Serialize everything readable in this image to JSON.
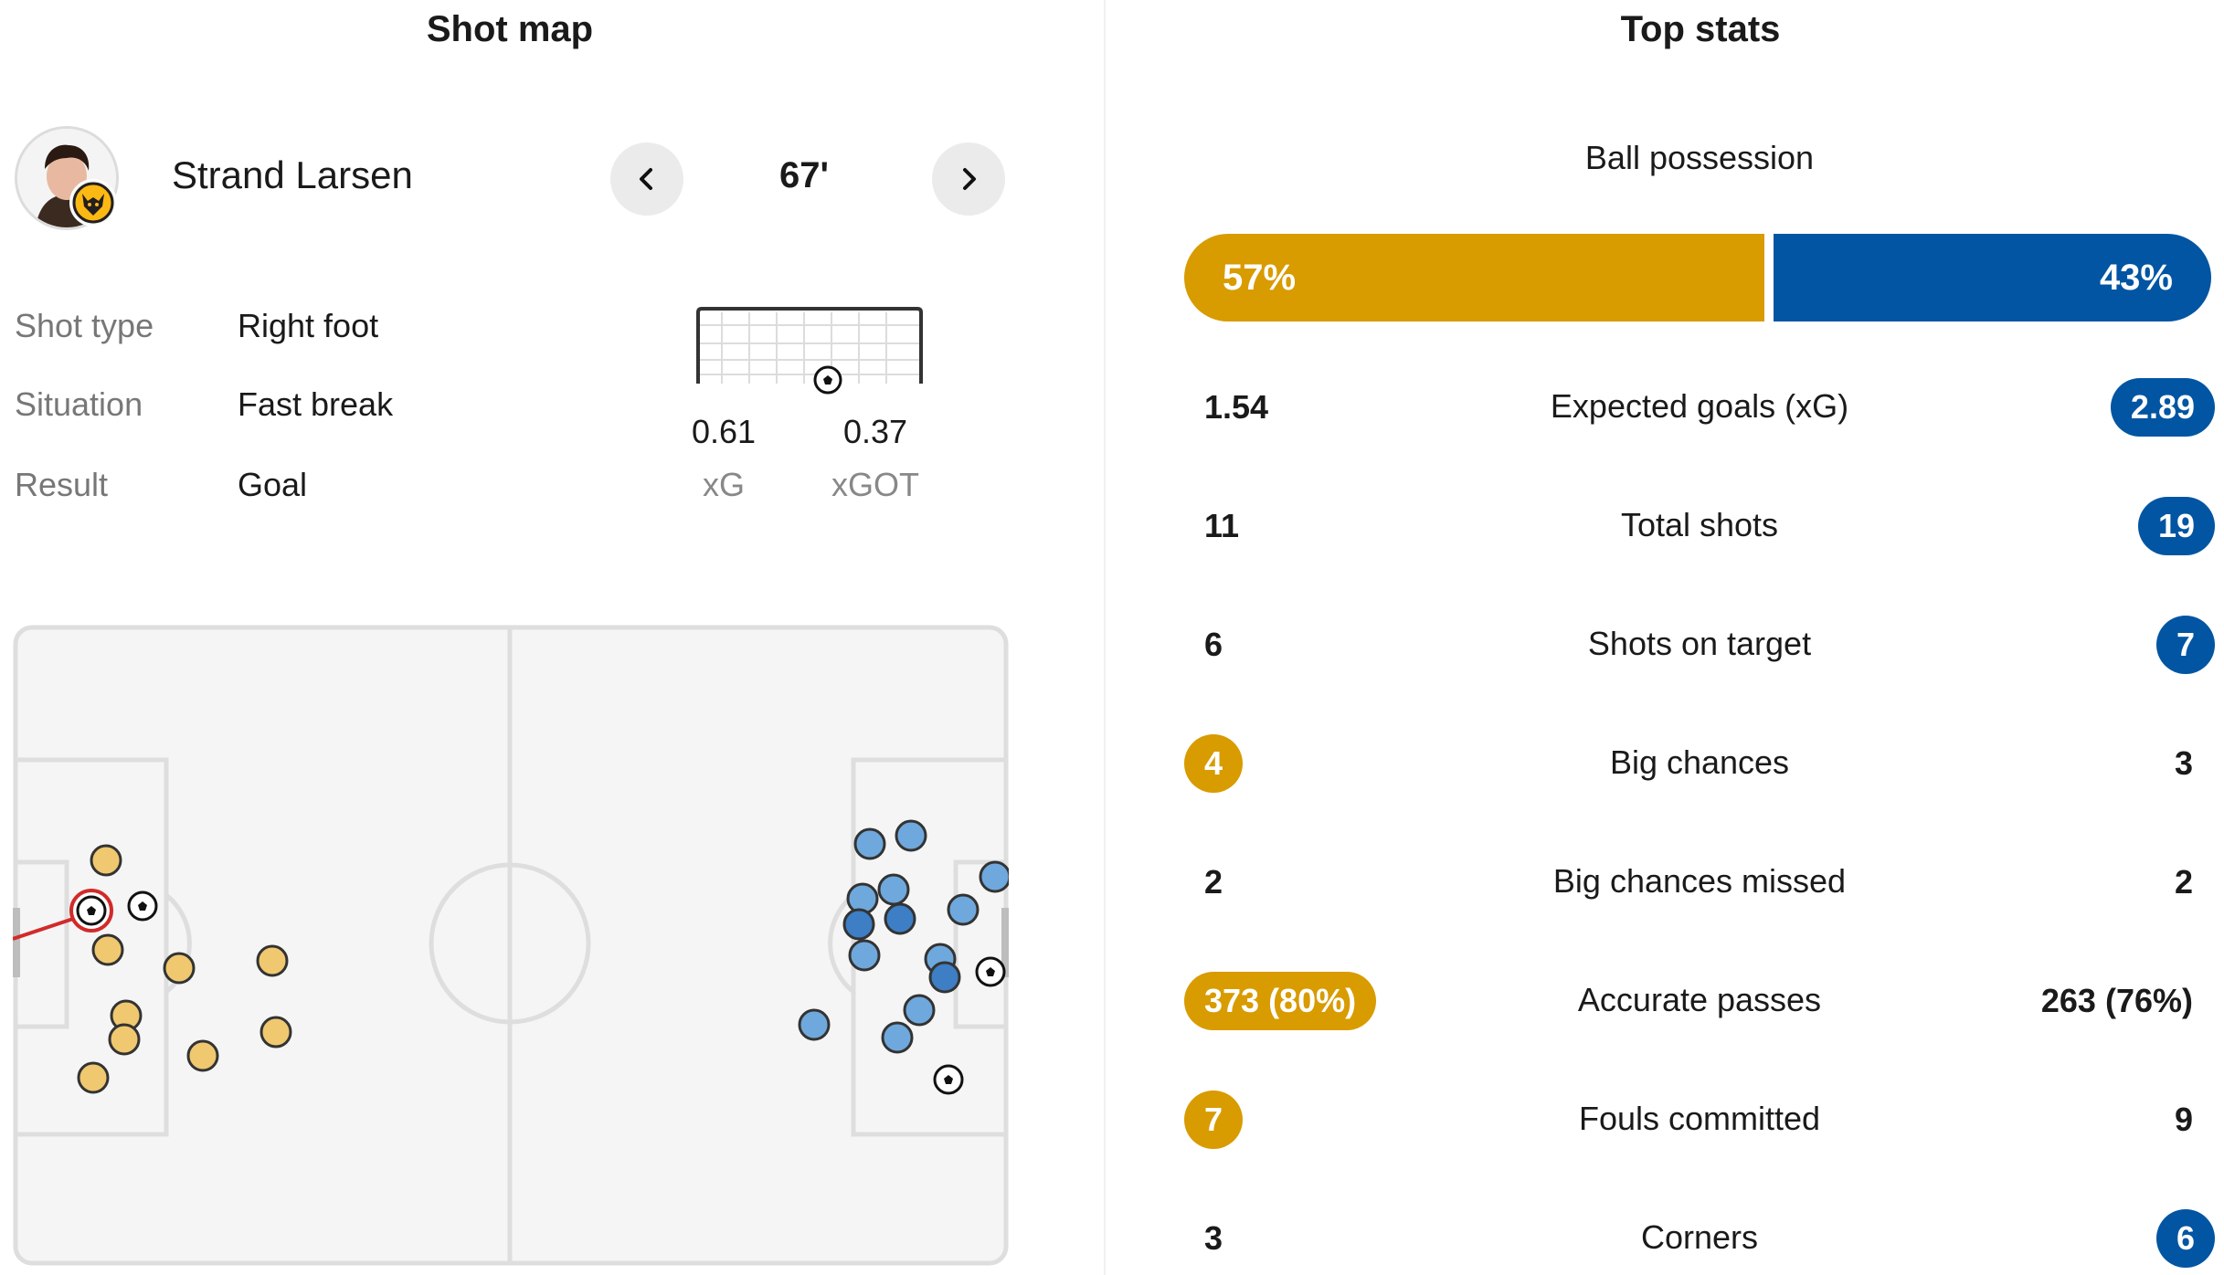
{
  "shot_map": {
    "title": "Shot map",
    "player_name": "Strand Larsen",
    "minute": "67'",
    "rows": [
      {
        "label": "Shot type",
        "value": "Right foot"
      },
      {
        "label": "Situation",
        "value": "Fast break"
      },
      {
        "label": "Result",
        "value": "Goal"
      }
    ],
    "xg_value": "0.61",
    "xg_label": "xG",
    "xgot_value": "0.37",
    "xgot_label": "xGOT",
    "colors": {
      "home_shot": "#f0c870",
      "away_shot": "#6fa8dc",
      "away_shot_dark": "#3d7ec4",
      "selected": "#d22a2a"
    }
  },
  "top_stats": {
    "title": "Top stats",
    "possession": {
      "label": "Ball possession",
      "home": "57%",
      "away": "43%",
      "home_fraction": 0.57
    },
    "stats": [
      {
        "label": "Expected goals (xG)",
        "home": "1.54",
        "away": "2.89",
        "highlight": "away"
      },
      {
        "label": "Total shots",
        "home": "11",
        "away": "19",
        "highlight": "away"
      },
      {
        "label": "Shots on target",
        "home": "6",
        "away": "7",
        "highlight": "away"
      },
      {
        "label": "Big chances",
        "home": "4",
        "away": "3",
        "highlight": "home"
      },
      {
        "label": "Big chances missed",
        "home": "2",
        "away": "2",
        "highlight": "none"
      },
      {
        "label": "Accurate passes",
        "home": "373 (80%)",
        "away": "263 (76%)",
        "highlight": "home"
      },
      {
        "label": "Fouls committed",
        "home": "7",
        "away": "9",
        "highlight": "home"
      },
      {
        "label": "Corners",
        "home": "3",
        "away": "6",
        "highlight": "away"
      }
    ],
    "colors": {
      "home": "#d89b00",
      "away": "#0155a2"
    }
  }
}
